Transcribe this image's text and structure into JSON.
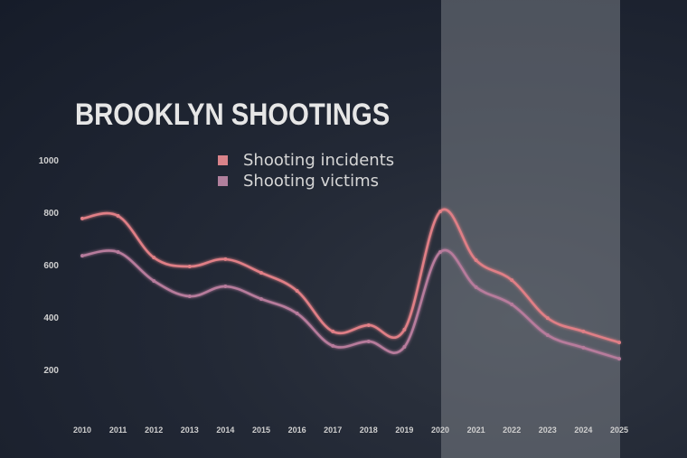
{
  "chart_data": {
    "type": "line",
    "title": "BROOKLYN SHOOTINGS",
    "xlabel": "",
    "ylabel": "",
    "x": [
      2010,
      2011,
      2012,
      2013,
      2014,
      2015,
      2016,
      2017,
      2018,
      2019,
      2020,
      2021,
      2022,
      2023,
      2024,
      2025
    ],
    "series": [
      {
        "name": "Shooting incidents",
        "color": "#e07f86",
        "values": [
          783,
          793,
          634,
          600,
          628,
          576,
          507,
          352,
          376,
          359,
          810,
          624,
          548,
          403,
          352,
          310
        ]
      },
      {
        "name": "Shooting victims",
        "color": "#b77b9c",
        "values": [
          641,
          655,
          545,
          486,
          524,
          476,
          421,
          297,
          314,
          293,
          655,
          521,
          455,
          338,
          290,
          248
        ]
      }
    ],
    "yticks": [
      1000,
      800,
      600,
      400,
      200
    ],
    "ylim": [
      0,
      1000
    ],
    "grid": false,
    "legend_position": "top-center",
    "highlight_range": [
      2020,
      2025
    ]
  },
  "title": "BROOKLYN SHOOTINGS",
  "legend": [
    {
      "label": "Shooting incidents",
      "color": "#d9838a"
    },
    {
      "label": "Shooting victims",
      "color": "#b1809d"
    }
  ],
  "yaxis": {
    "ticks": [
      "1000",
      "800",
      "600",
      "400",
      "200"
    ]
  },
  "xaxis": {
    "ticks": [
      "2010",
      "2011",
      "2012",
      "2013",
      "2014",
      "2015",
      "2016",
      "2017",
      "2018",
      "2019",
      "2020",
      "2021",
      "2022",
      "2023",
      "2024",
      "2025"
    ]
  }
}
